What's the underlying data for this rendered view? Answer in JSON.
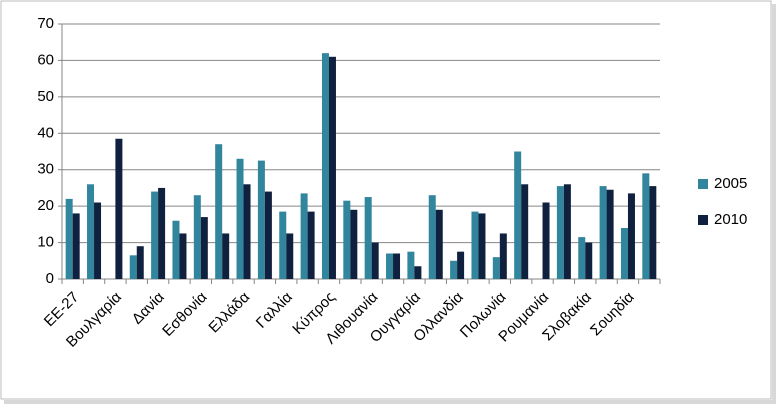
{
  "chart_data": {
    "type": "bar",
    "categories": [
      "ΕΕ-27",
      null,
      "Βουλγαρία",
      null,
      "Δανία",
      null,
      "Εσθονία",
      null,
      "Ελλάδα",
      null,
      "Γαλλία",
      null,
      "Κύπρος",
      null,
      "Λιθουανία",
      null,
      "Ουγγαρία",
      null,
      "Ολλανδία",
      null,
      "Πολωνία",
      null,
      "Ρουμανία",
      null,
      "Σλοβακία",
      null,
      "Σουηδία",
      null
    ],
    "series": [
      {
        "name": "2005",
        "color": "#31859c",
        "values": [
          22,
          26,
          null,
          6.5,
          24,
          16,
          23,
          37,
          33,
          32.5,
          18.5,
          23.5,
          62,
          21.5,
          22.5,
          7,
          7.5,
          23,
          5,
          18.5,
          6,
          35,
          null,
          25.5,
          11.5,
          25.5,
          14,
          29
        ]
      },
      {
        "name": "2010",
        "color": "#10213f",
        "values": [
          18,
          21,
          38.5,
          9,
          25,
          12.5,
          17,
          12.5,
          26,
          24,
          12.5,
          18.5,
          61,
          19,
          10,
          7,
          3.5,
          19,
          7.5,
          18,
          12.5,
          26,
          21,
          26,
          10,
          24.5,
          23.5,
          25.5
        ]
      }
    ],
    "ylim": [
      0,
      70
    ],
    "yticks": [
      0,
      10,
      20,
      30,
      40,
      50,
      60,
      70
    ],
    "grid": true,
    "legend": "right"
  }
}
